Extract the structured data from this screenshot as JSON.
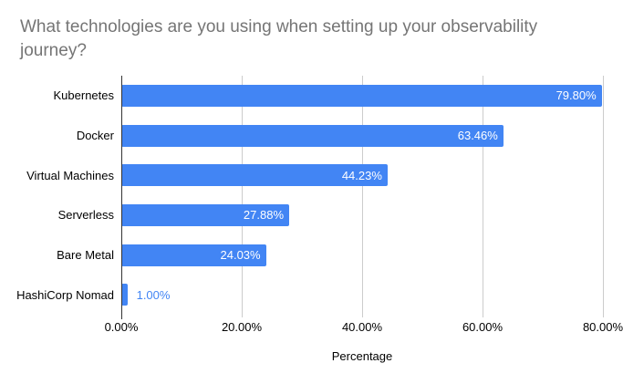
{
  "chart_data": {
    "type": "bar",
    "orientation": "horizontal",
    "title": "What technologies are you using when setting up your observability journey?",
    "categories": [
      "Kubernetes",
      "Docker",
      "Virtual Machines",
      "Serverless",
      "Bare Metal",
      "HashiCorp Nomad"
    ],
    "values": [
      79.8,
      63.46,
      44.23,
      27.88,
      24.03,
      1.0
    ],
    "value_labels": [
      "79.80%",
      "63.46%",
      "44.23%",
      "27.88%",
      "24.03%",
      "1.00%"
    ],
    "xlabel": "Percentage",
    "x_ticks": [
      "0.00%",
      "20.00%",
      "40.00%",
      "60.00%",
      "80.00%"
    ],
    "xlim": [
      0,
      80
    ],
    "grid": true,
    "legend": "none",
    "colors": {
      "bar": "#4285f4",
      "title_text": "#757575",
      "axis_text": "#000000",
      "gridline": "#cccccc",
      "axis_line": "#333333",
      "label_inside": "#ffffff",
      "label_outside": "#4285f4",
      "background": "#ffffff"
    }
  }
}
